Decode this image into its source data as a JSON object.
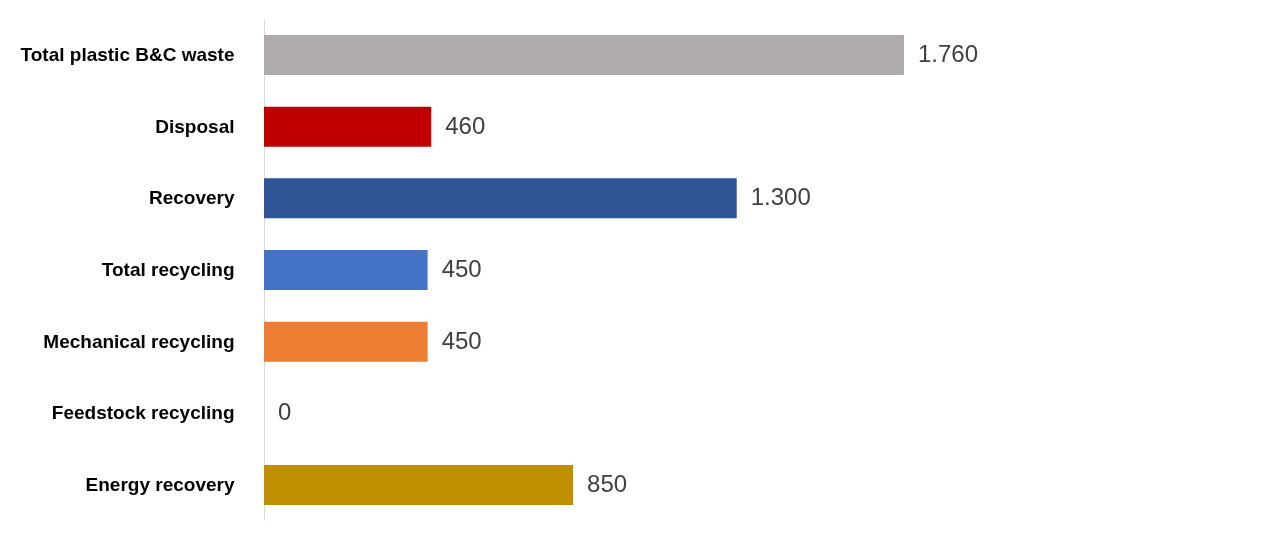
{
  "chart_data": {
    "type": "bar",
    "orientation": "horizontal",
    "categories": [
      "Total plastic B&C waste",
      "Disposal",
      "Recovery",
      "Total recycling",
      "Mechanical recycling",
      "Feedstock recycling",
      "Energy recovery"
    ],
    "values": [
      1760,
      460,
      1300,
      450,
      450,
      0,
      850
    ],
    "colors": [
      "#afabab",
      "#c00000",
      "#2f5597",
      "#4472c4",
      "#ed7d31",
      "#a5a5a5",
      "#bf9000"
    ],
    "value_labels": [
      "1.760",
      "460",
      "1.300",
      "450",
      "450",
      "0",
      "850"
    ],
    "grid": false,
    "legend": false
  }
}
